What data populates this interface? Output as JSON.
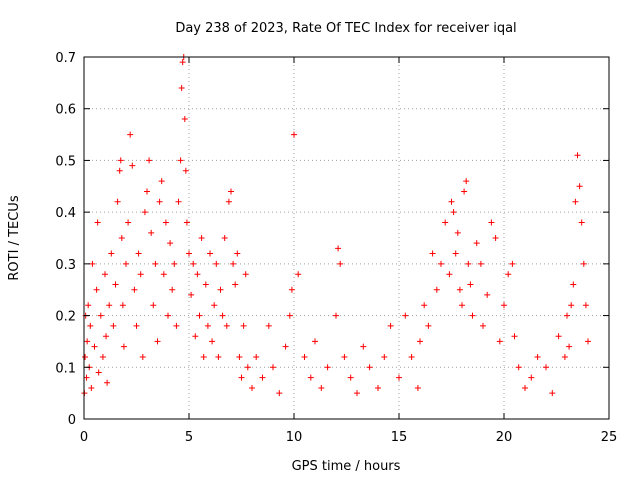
{
  "chart_data": {
    "type": "scatter",
    "title": "Day 238 of 2023, Rate Of TEC Index for receiver iqal",
    "xlabel": "GPS time / hours",
    "ylabel": "ROTI / TECUs",
    "xlim": [
      0,
      25
    ],
    "ylim": [
      0,
      0.7
    ],
    "xticks": [
      0,
      5,
      10,
      15,
      20,
      25
    ],
    "yticks": [
      0,
      0.1,
      0.2,
      0.3,
      0.4,
      0.5,
      0.6,
      0.7
    ],
    "xtick_labels": [
      "0",
      "5",
      "10",
      "15",
      "20",
      "25"
    ],
    "ytick_labels": [
      "0",
      "0.1",
      "0.2",
      "0.3",
      "0.4",
      "0.5",
      "0.6",
      "0.7"
    ],
    "grid": true,
    "marker": "+",
    "color": "#ff0000",
    "series": [
      {
        "name": "ROTI",
        "x": [
          0.02,
          0.05,
          0.08,
          0.12,
          0.15,
          0.2,
          0.25,
          0.3,
          0.35,
          0.4,
          0.5,
          0.6,
          0.65,
          0.7,
          0.8,
          0.9,
          1.0,
          1.05,
          1.1,
          1.2,
          1.3,
          1.4,
          1.5,
          1.6,
          1.7,
          1.75,
          1.8,
          1.85,
          1.9,
          2.0,
          2.1,
          2.2,
          2.3,
          2.4,
          2.5,
          2.6,
          2.7,
          2.8,
          2.9,
          3.0,
          3.1,
          3.2,
          3.3,
          3.4,
          3.5,
          3.6,
          3.7,
          3.8,
          3.9,
          4.0,
          4.1,
          4.2,
          4.3,
          4.4,
          4.5,
          4.6,
          4.65,
          4.7,
          4.75,
          4.8,
          4.85,
          4.9,
          5.0,
          5.1,
          5.2,
          5.3,
          5.4,
          5.5,
          5.6,
          5.7,
          5.8,
          5.9,
          6.0,
          6.1,
          6.2,
          6.3,
          6.4,
          6.5,
          6.6,
          6.7,
          6.8,
          6.9,
          7.0,
          7.1,
          7.2,
          7.3,
          7.4,
          7.5,
          7.6,
          7.7,
          7.8,
          8.0,
          8.2,
          8.5,
          8.8,
          9.0,
          9.3,
          9.6,
          9.8,
          9.9,
          10.0,
          10.2,
          10.5,
          10.8,
          11.0,
          11.3,
          11.6,
          12.0,
          12.1,
          12.2,
          12.4,
          12.7,
          13.0,
          13.3,
          13.6,
          14.0,
          14.3,
          14.6,
          15.0,
          15.3,
          15.6,
          15.9,
          16.0,
          16.2,
          16.4,
          16.6,
          16.8,
          17.0,
          17.2,
          17.4,
          17.5,
          17.6,
          17.7,
          17.8,
          17.9,
          18.0,
          18.1,
          18.2,
          18.3,
          18.4,
          18.5,
          18.7,
          18.9,
          19.0,
          19.2,
          19.4,
          19.6,
          19.8,
          20.0,
          20.2,
          20.4,
          20.5,
          20.7,
          21.0,
          21.3,
          21.6,
          22.0,
          22.3,
          22.6,
          22.9,
          23.0,
          23.1,
          23.2,
          23.3,
          23.4,
          23.5,
          23.6,
          23.7,
          23.8,
          23.9,
          24.0
        ],
        "y": [
          0.05,
          0.12,
          0.2,
          0.08,
          0.15,
          0.22,
          0.1,
          0.18,
          0.06,
          0.3,
          0.14,
          0.25,
          0.38,
          0.09,
          0.2,
          0.12,
          0.28,
          0.16,
          0.07,
          0.22,
          0.32,
          0.18,
          0.26,
          0.42,
          0.48,
          0.5,
          0.35,
          0.22,
          0.14,
          0.3,
          0.38,
          0.55,
          0.49,
          0.25,
          0.18,
          0.32,
          0.28,
          0.12,
          0.4,
          0.44,
          0.5,
          0.36,
          0.22,
          0.3,
          0.15,
          0.42,
          0.46,
          0.28,
          0.38,
          0.2,
          0.34,
          0.25,
          0.3,
          0.18,
          0.42,
          0.5,
          0.64,
          0.69,
          0.7,
          0.58,
          0.48,
          0.38,
          0.32,
          0.24,
          0.3,
          0.16,
          0.28,
          0.2,
          0.35,
          0.12,
          0.26,
          0.18,
          0.32,
          0.15,
          0.22,
          0.3,
          0.12,
          0.25,
          0.2,
          0.35,
          0.18,
          0.42,
          0.44,
          0.3,
          0.26,
          0.32,
          0.12,
          0.08,
          0.18,
          0.28,
          0.1,
          0.06,
          0.12,
          0.08,
          0.18,
          0.1,
          0.05,
          0.14,
          0.2,
          0.25,
          0.55,
          0.28,
          0.12,
          0.08,
          0.15,
          0.06,
          0.1,
          0.2,
          0.33,
          0.3,
          0.12,
          0.08,
          0.05,
          0.14,
          0.1,
          0.06,
          0.12,
          0.18,
          0.08,
          0.2,
          0.12,
          0.06,
          0.15,
          0.22,
          0.18,
          0.32,
          0.25,
          0.3,
          0.38,
          0.28,
          0.42,
          0.4,
          0.32,
          0.36,
          0.25,
          0.22,
          0.44,
          0.46,
          0.3,
          0.26,
          0.2,
          0.34,
          0.3,
          0.18,
          0.24,
          0.38,
          0.35,
          0.15,
          0.22,
          0.28,
          0.3,
          0.16,
          0.1,
          0.06,
          0.08,
          0.12,
          0.1,
          0.05,
          0.16,
          0.12,
          0.2,
          0.14,
          0.22,
          0.26,
          0.42,
          0.51,
          0.45,
          0.38,
          0.3,
          0.22,
          0.15
        ]
      }
    ]
  }
}
